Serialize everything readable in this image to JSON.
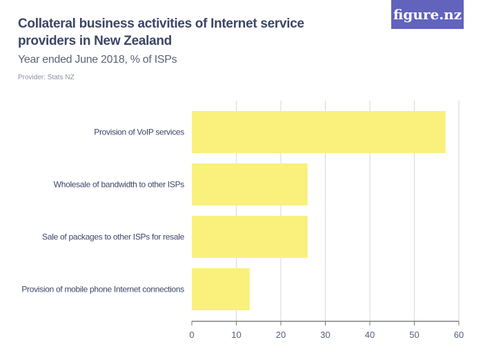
{
  "header": {
    "title": "Collateral business activities of Internet service providers in New Zealand",
    "subtitle": "Year ended June 2018, % of ISPs",
    "provider": "Provider: Stats NZ",
    "logo_text": "figure.nz",
    "logo_color": "#6163bd"
  },
  "chart_data": {
    "type": "bar",
    "orientation": "horizontal",
    "title": "Collateral business activities of Internet service providers in New Zealand",
    "subtitle": "Year ended June 2018, % of ISPs",
    "categories": [
      "Provision of VoIP services",
      "Wholesale of bandwidth to other ISPs",
      "Sale of packages to other ISPs for resale",
      "Provision of mobile phone Internet connections"
    ],
    "values": [
      57,
      26,
      26,
      13
    ],
    "xlim": [
      0,
      60
    ],
    "xticks": [
      0,
      10,
      20,
      30,
      40,
      50,
      60
    ],
    "grid": true,
    "bar_color": "#f9f17c"
  }
}
